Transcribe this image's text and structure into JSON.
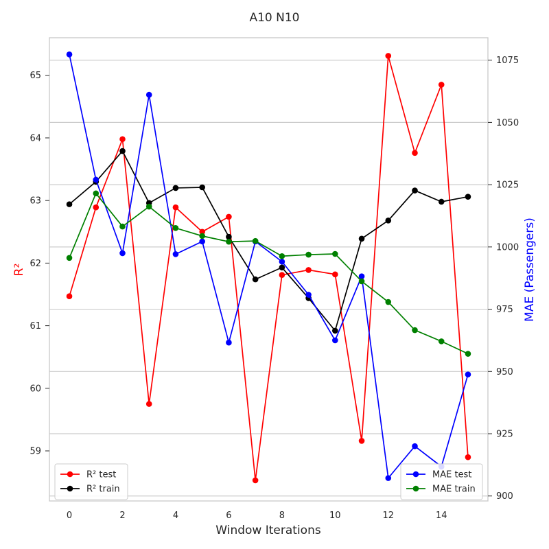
{
  "chart_data": {
    "type": "line",
    "title": "A10 N10",
    "xlabel": "Window Iterations",
    "ylabel_left": "R²",
    "ylabel_right": "MAE (Passengers)",
    "x": [
      0,
      1,
      2,
      3,
      4,
      5,
      6,
      7,
      8,
      9,
      10,
      11,
      12,
      13,
      14,
      15
    ],
    "xlim": [
      -0.75,
      15.75
    ],
    "x_ticks": [
      0,
      2,
      4,
      6,
      8,
      10,
      12,
      14
    ],
    "ylim_left": [
      58.2,
      65.6
    ],
    "y_ticks_left": [
      59,
      60,
      61,
      62,
      63,
      64,
      65
    ],
    "ylim_right": [
      898,
      1084
    ],
    "y_ticks_right": [
      900,
      925,
      950,
      975,
      1000,
      1025,
      1050,
      1075
    ],
    "grid": "horizontal lines at right-axis ticks",
    "series_left": [
      {
        "name": "R² test",
        "color": "#ff0000",
        "values": [
          61.47,
          62.89,
          63.98,
          59.75,
          62.89,
          62.5,
          62.74,
          58.53,
          61.81,
          61.89,
          61.82,
          59.16,
          65.31,
          63.76,
          64.85,
          58.9
        ]
      },
      {
        "name": "R² train",
        "color": "#000000",
        "values": [
          62.94,
          63.3,
          63.79,
          62.96,
          63.2,
          63.21,
          62.42,
          61.74,
          61.93,
          61.44,
          60.92,
          62.39,
          62.68,
          63.16,
          62.98,
          63.06
        ]
      }
    ],
    "series_right": [
      {
        "name": "MAE test",
        "color": "#0000ff",
        "values": [
          1077.3,
          1027.0,
          997.5,
          1061.1,
          997.1,
          1002.2,
          961.6,
          1002.2,
          994.1,
          980.8,
          962.5,
          988.2,
          907.2,
          920.0,
          911.8,
          948.8
        ]
      },
      {
        "name": "MAE train",
        "color": "#008000",
        "values": [
          995.6,
          1021.5,
          1008.2,
          1016.2,
          1007.6,
          1004.4,
          1002.1,
          1002.4,
          996.3,
          996.9,
          997.2,
          986.2,
          977.9,
          966.6,
          962.1,
          957.1
        ]
      }
    ],
    "legend_left": "lower-left",
    "legend_right": "lower-right"
  }
}
